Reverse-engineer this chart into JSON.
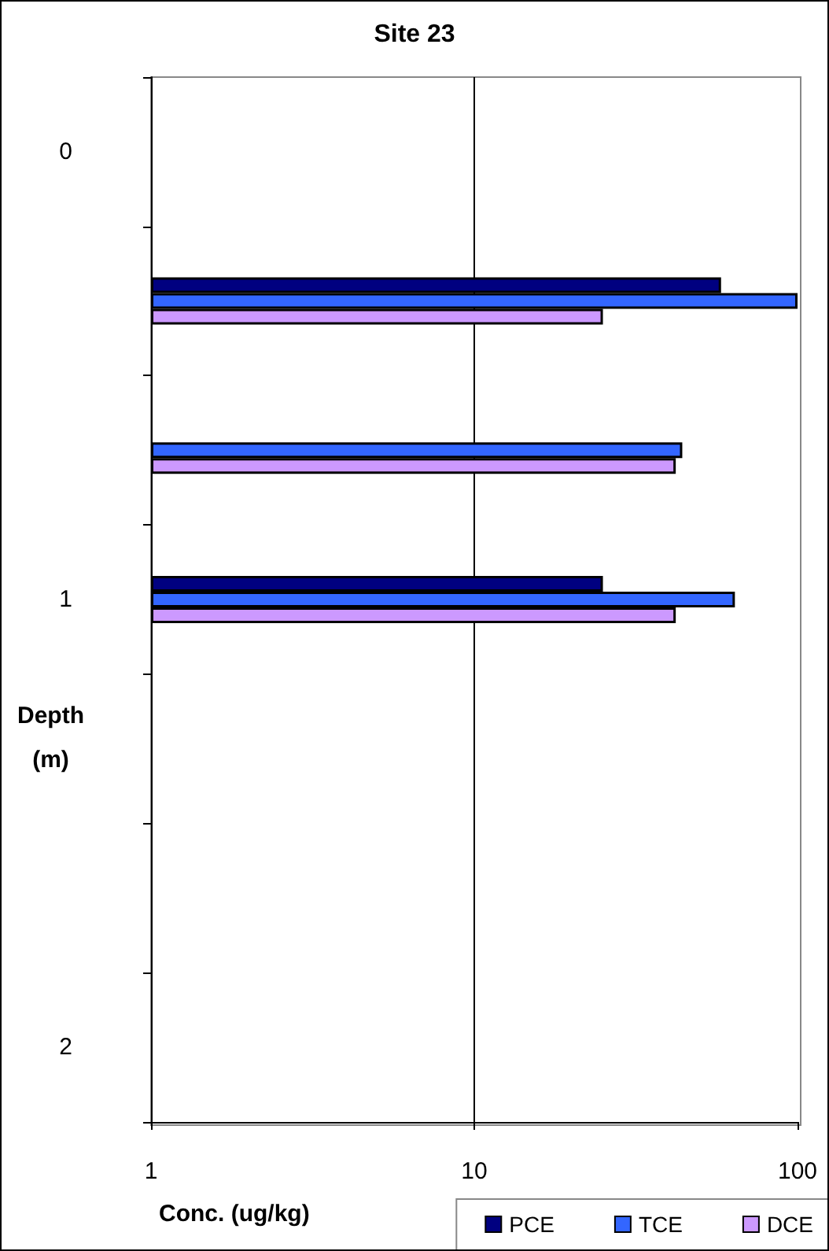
{
  "chart_data": {
    "type": "bar",
    "orientation": "horizontal",
    "title": "Site 23",
    "xlabel": "Conc. (ug/kg)",
    "ylabel": "Depth\n(m)",
    "categories": [
      "0",
      null,
      null,
      "1",
      null,
      null,
      "2"
    ],
    "series": [
      {
        "name": "PCE",
        "color": "#000080",
        "values": [
          null,
          58,
          null,
          25,
          null,
          null,
          null
        ]
      },
      {
        "name": "TCE",
        "color": "#3366ff",
        "values": [
          null,
          100,
          44,
          64,
          null,
          null,
          null
        ]
      },
      {
        "name": "DCE",
        "color": "#cc99ff",
        "values": [
          null,
          25,
          42,
          42,
          null,
          null,
          null
        ]
      }
    ],
    "log": "x",
    "xlim": [
      1,
      100
    ],
    "xticks": [
      1,
      10,
      100
    ],
    "grid": "x",
    "legend": "bottom right"
  }
}
